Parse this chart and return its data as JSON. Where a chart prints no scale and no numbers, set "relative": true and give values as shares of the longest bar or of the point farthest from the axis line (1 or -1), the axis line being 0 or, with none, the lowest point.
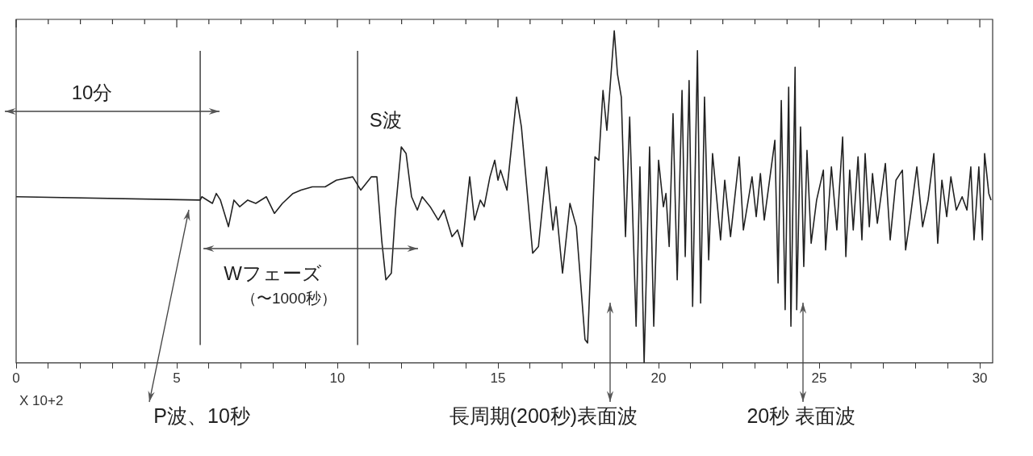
{
  "chart_data": {
    "type": "line",
    "relative": true,
    "xlabel": "X 10+2",
    "xlim": [
      0,
      30.4
    ],
    "xticks": [
      0,
      {
        "value": 1,
        "label": null
      },
      {
        "value": 2,
        "label": null
      },
      {
        "value": 3,
        "label": null
      },
      {
        "value": 4,
        "label": null
      },
      5,
      {
        "value": 6,
        "label": null
      },
      {
        "value": 7,
        "label": null
      },
      {
        "value": 8,
        "label": null
      },
      {
        "value": 9,
        "label": null
      },
      10,
      {
        "value": 11,
        "label": null
      },
      {
        "value": 12,
        "label": null
      },
      {
        "value": 13,
        "label": null
      },
      {
        "value": 14,
        "label": null
      },
      15,
      {
        "value": 16,
        "label": null
      },
      {
        "value": 17,
        "label": null
      },
      {
        "value": 18,
        "label": null
      },
      {
        "value": 19,
        "label": null
      },
      20,
      {
        "value": 21,
        "label": null
      },
      {
        "value": 22,
        "label": null
      },
      {
        "value": 23,
        "label": null
      },
      {
        "value": 24,
        "label": null
      },
      25,
      {
        "value": 26,
        "label": null
      },
      {
        "value": 27,
        "label": null
      },
      {
        "value": 28,
        "label": null
      },
      {
        "value": 29,
        "label": null
      },
      30
    ],
    "grid": false,
    "legend": false,
    "marker": "none",
    "line_style": "solid",
    "series": [
      {
        "color": "#222222",
        "x": [
          0,
          5.73,
          5.78,
          6.11,
          6.23,
          6.36,
          6.61,
          6.78,
          6.96,
          7.21,
          7.46,
          7.79,
          8.04,
          8.29,
          8.62,
          8.87,
          9.22,
          9.62,
          9.97,
          10.48,
          10.73,
          11.06,
          11.23,
          11.38,
          11.51,
          11.68,
          11.81,
          11.99,
          12.14,
          12.31,
          12.49,
          12.64,
          12.89,
          13.14,
          13.32,
          13.57,
          13.74,
          13.89,
          14.12,
          14.27,
          14.45,
          14.57,
          14.75,
          14.9,
          15.0,
          15.08,
          15.28,
          15.58,
          15.73,
          16.08,
          16.26,
          16.51,
          16.71,
          16.81,
          17.01,
          17.24,
          17.44,
          17.71,
          17.79,
          18.02,
          18.14,
          18.27,
          18.39,
          18.62,
          18.72,
          18.84,
          18.97,
          19.1,
          19.3,
          19.42,
          19.55,
          19.72,
          19.85,
          20.0,
          20.15,
          20.23,
          20.33,
          20.45,
          20.58,
          20.73,
          20.83,
          20.95,
          21.06,
          21.21,
          21.31,
          21.43,
          21.56,
          21.68,
          21.93,
          22.06,
          22.24,
          22.51,
          22.64,
          22.91,
          23.04,
          23.17,
          23.29,
          23.62,
          23.72,
          23.82,
          23.94,
          24.05,
          24.12,
          24.25,
          24.3,
          24.42,
          24.52,
          24.62,
          24.75,
          24.92,
          25.13,
          25.2,
          25.38,
          25.55,
          25.73,
          25.83,
          25.95,
          26.06,
          26.21,
          26.33,
          26.43,
          26.56,
          26.66,
          26.81,
          27.06,
          27.21,
          27.39,
          27.59,
          27.69,
          27.84,
          28.04,
          28.22,
          28.39,
          28.57,
          28.69,
          28.82,
          28.97,
          29.1,
          29.27,
          29.45,
          29.6,
          29.72,
          29.82,
          29.97,
          30.08,
          30.15,
          30.28,
          30.35
        ],
        "values": [
          0.5,
          0.49,
          0.5,
          0.48,
          0.51,
          0.49,
          0.41,
          0.49,
          0.47,
          0.49,
          0.48,
          0.5,
          0.45,
          0.48,
          0.51,
          0.52,
          0.53,
          0.53,
          0.55,
          0.56,
          0.52,
          0.56,
          0.56,
          0.37,
          0.25,
          0.27,
          0.46,
          0.65,
          0.63,
          0.5,
          0.46,
          0.5,
          0.47,
          0.43,
          0.46,
          0.38,
          0.4,
          0.35,
          0.56,
          0.43,
          0.49,
          0.47,
          0.56,
          0.61,
          0.55,
          0.58,
          0.52,
          0.8,
          0.71,
          0.33,
          0.35,
          0.59,
          0.4,
          0.47,
          0.27,
          0.48,
          0.41,
          0.07,
          0.06,
          0.62,
          0.61,
          0.82,
          0.7,
          1.0,
          0.87,
          0.8,
          0.38,
          0.74,
          0.11,
          0.59,
          0.0,
          0.65,
          0.11,
          0.61,
          0.47,
          0.51,
          0.35,
          0.75,
          0.25,
          0.82,
          0.32,
          0.85,
          0.17,
          0.94,
          0.18,
          0.8,
          0.31,
          0.63,
          0.37,
          0.55,
          0.38,
          0.62,
          0.4,
          0.56,
          0.44,
          0.57,
          0.43,
          0.67,
          0.24,
          0.79,
          0.16,
          0.83,
          0.11,
          0.89,
          0.16,
          0.71,
          0.29,
          0.64,
          0.36,
          0.49,
          0.58,
          0.34,
          0.59,
          0.4,
          0.68,
          0.32,
          0.58,
          0.4,
          0.62,
          0.37,
          0.63,
          0.41,
          0.57,
          0.42,
          0.6,
          0.37,
          0.55,
          0.58,
          0.34,
          0.44,
          0.59,
          0.41,
          0.49,
          0.63,
          0.36,
          0.55,
          0.44,
          0.56,
          0.46,
          0.5,
          0.46,
          0.59,
          0.37,
          0.59,
          0.37,
          0.63,
          0.51,
          0.49
        ]
      }
    ],
    "ref_lines": [
      {
        "axis": "x",
        "value": 5.73,
        "color": "#222222"
      },
      {
        "axis": "x",
        "value": 10.63,
        "color": "#222222"
      }
    ],
    "annotations": [
      "10分",
      "Wフェーズ",
      "（〜1000秒）",
      {
        "text": "S波",
        "x": 12.0,
        "y": 0.65
      },
      "P波、10秒",
      "長周期(200秒)表面波",
      "20秒 表面波"
    ]
  }
}
